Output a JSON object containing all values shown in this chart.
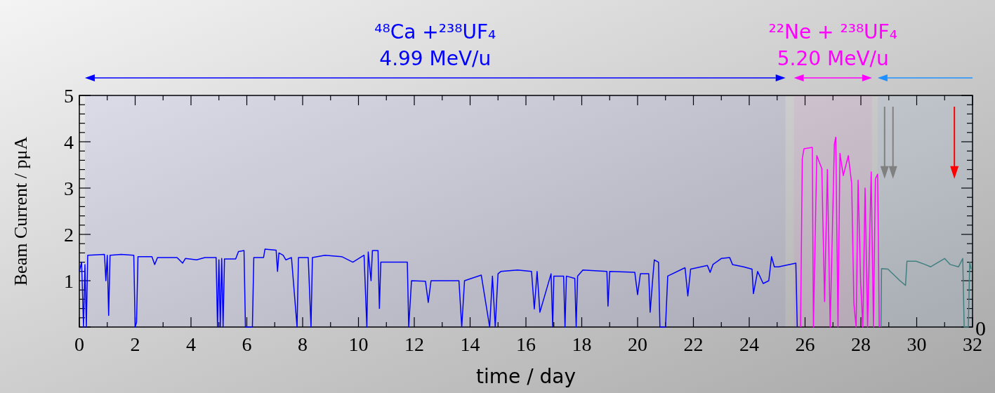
{
  "chart_data": {
    "type": "line",
    "xlabel": "time / day",
    "ylabel": "Beam Current / pμA",
    "xlim": [
      0,
      32
    ],
    "ylim": [
      0,
      5
    ],
    "xticks": [
      0,
      2,
      4,
      6,
      8,
      10,
      12,
      14,
      16,
      18,
      20,
      22,
      24,
      26,
      28,
      30,
      32
    ],
    "yticks": [
      {
        "value": 0,
        "label": null
      },
      1,
      2,
      3,
      4,
      5
    ],
    "annotations": [
      "0"
    ],
    "bands": [
      {
        "axis": "x",
        "from": 0.2,
        "to": 25.3,
        "label": "⁴⁸Ca +²³⁸UF₄\n4.99 MeV/u",
        "color": "#0000ff"
      },
      {
        "axis": "x",
        "from": 25.6,
        "to": 28.4,
        "label": "²²Ne + ²³⁸UF₄\n5.20 MeV/u",
        "color": "#ff00ff"
      },
      {
        "axis": "x",
        "from": 28.6,
        "to": 32,
        "color": "#1e90ff"
      }
    ],
    "ref_lines": [
      {
        "axis": "x",
        "value": 28.85,
        "color": "#808080"
      },
      {
        "axis": "x",
        "value": 29.15,
        "color": "#808080"
      },
      {
        "axis": "x",
        "value": 31.35,
        "color": "#ff0000"
      }
    ],
    "series": [
      {
        "color": "#0000ff",
        "x": [
          0,
          0.08,
          0.15,
          0.2,
          0.25,
          0.3,
          0.9,
          0.95,
          1.0,
          1.05,
          1.1,
          1.5,
          1.95,
          2.0,
          2.05,
          2.1,
          2.6,
          2.7,
          2.8,
          3.5,
          3.7,
          3.8,
          4.2,
          4.5,
          4.9,
          4.95,
          5.0,
          5.05,
          5.1,
          5.15,
          5.2,
          5.6,
          5.7,
          5.9,
          5.95,
          6.2,
          6.25,
          6.6,
          6.65,
          7.05,
          7.1,
          7.15,
          7.3,
          7.4,
          7.6,
          7.8,
          7.85,
          8.2,
          8.3,
          8.35,
          8.8,
          9.4,
          9.8,
          10.2,
          10.3,
          10.35,
          10.45,
          10.5,
          10.7,
          10.75,
          10.8,
          11.5,
          11.75,
          11.8,
          11.9,
          12.4,
          12.5,
          12.6,
          13.6,
          13.7,
          13.8,
          14.4,
          14.7,
          14.8,
          14.9,
          15.0,
          15.1,
          15.7,
          16.2,
          16.3,
          16.4,
          16.5,
          16.9,
          16.96,
          17.0,
          17.35,
          17.4,
          17.45,
          17.75,
          17.8,
          17.85,
          18.04,
          18.9,
          18.94,
          19.0,
          19.9,
          20.0,
          20.1,
          20.4,
          20.45,
          20.55,
          20.6,
          20.75,
          20.8,
          21.0,
          21.08,
          21.7,
          21.8,
          21.9,
          22.5,
          22.6,
          22.7,
          23.0,
          23.3,
          23.4,
          23.8,
          24.1,
          24.15,
          24.3,
          24.5,
          24.7,
          24.8,
          24.9,
          25.05,
          25.67,
          25.72
        ],
        "values": [
          1.2,
          1.4,
          0,
          1.35,
          0,
          1.55,
          1.57,
          1.0,
          1.55,
          0.25,
          1.55,
          1.57,
          1.55,
          0,
          0.1,
          1.52,
          1.52,
          1.35,
          1.5,
          1.5,
          1.38,
          1.48,
          1.45,
          1.5,
          1.5,
          0,
          1.45,
          0,
          1.48,
          0,
          1.47,
          1.47,
          1.63,
          1.65,
          0,
          0,
          1.5,
          1.5,
          1.68,
          1.66,
          1.2,
          1.6,
          1.55,
          1.45,
          1.5,
          0,
          1.5,
          1.5,
          0,
          1.5,
          1.55,
          1.52,
          1.4,
          1.55,
          0,
          1.62,
          1.0,
          1.65,
          1.65,
          0.4,
          1.4,
          1.4,
          1.4,
          0,
          1.0,
          0.99,
          0.53,
          1.0,
          1.0,
          0,
          1.0,
          1.12,
          0,
          1.1,
          0,
          1.15,
          1.2,
          1.23,
          1.2,
          0.39,
          1.2,
          0.32,
          1.15,
          0,
          1.1,
          1.1,
          0,
          1.1,
          1.05,
          0,
          1.1,
          1.23,
          1.2,
          0.45,
          1.2,
          1.18,
          0.7,
          1.15,
          1.15,
          0.32,
          1.1,
          1.45,
          1.4,
          0,
          0,
          1.1,
          1.28,
          0.67,
          1.25,
          1.33,
          1.18,
          1.35,
          1.48,
          1.5,
          1.35,
          1.3,
          1.25,
          0.72,
          1.2,
          0.94,
          1.0,
          1.52,
          1.3,
          1.3,
          1.38,
          0
        ]
      },
      {
        "color": "#ff00ff",
        "x": [
          25.84,
          25.9,
          25.96,
          26.26,
          26.3,
          26.42,
          26.6,
          26.7,
          26.8,
          26.9,
          27.05,
          27.1,
          27.18,
          27.25,
          27.37,
          27.55,
          27.67,
          27.75,
          27.83,
          27.9,
          27.99,
          28.07,
          28.15,
          28.24,
          28.37,
          28.45,
          28.52,
          28.6,
          28.66
        ],
        "values": [
          0,
          3.63,
          3.85,
          3.88,
          0,
          3.7,
          3.42,
          0.55,
          3.4,
          0,
          3.95,
          4.1,
          0,
          3.75,
          3.27,
          3.7,
          3.1,
          0.5,
          0,
          3.17,
          1.0,
          0,
          3.0,
          0,
          3.35,
          0,
          3.2,
          3.3,
          0
        ]
      },
      {
        "color": "#408080",
        "x": [
          28.72,
          28.74,
          28.97,
          29.4,
          29.6,
          29.65,
          29.98,
          30.3,
          30.5,
          31.0,
          31.2,
          31.5,
          31.65,
          31.7,
          31.85,
          31.9,
          31.95
        ],
        "values": [
          0,
          1.26,
          1.25,
          1.0,
          0.9,
          1.42,
          1.42,
          1.35,
          1.3,
          1.48,
          1.35,
          1.3,
          1.48,
          0,
          0,
          1.4,
          1.25
        ]
      }
    ]
  }
}
